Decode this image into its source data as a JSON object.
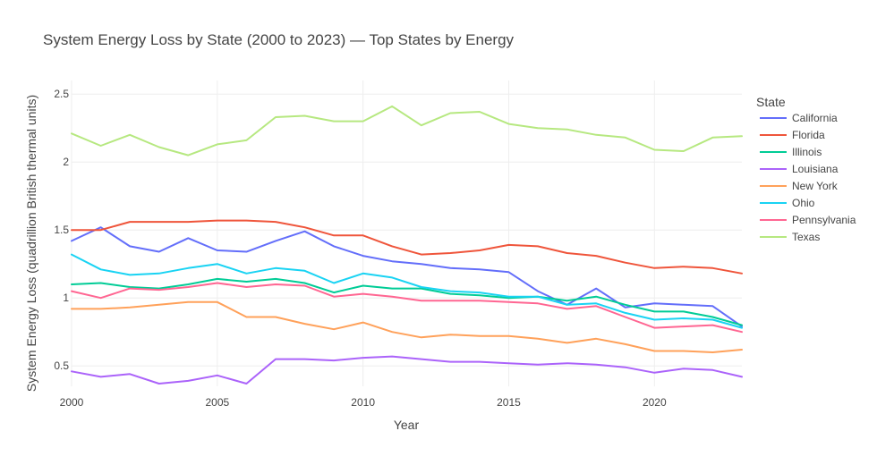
{
  "chart_data": {
    "type": "line",
    "title": "System Energy Loss by State (2000 to 2023) — Top States by Energy",
    "xlabel": "Year",
    "ylabel": "System Energy Loss (quadrillion British thermal units)",
    "legend_title": "State",
    "legend_position": "right",
    "grid": true,
    "xlim": [
      2000,
      2023
    ],
    "ylim": [
      0.35,
      2.6
    ],
    "x_ticks": [
      2000,
      2005,
      2010,
      2015,
      2020
    ],
    "y_ticks": [
      0.5,
      1,
      1.5,
      2,
      2.5
    ],
    "y_tick_labels": [
      "0.5",
      "1",
      "1.5",
      "2",
      "2.5"
    ],
    "x": [
      2000,
      2001,
      2002,
      2003,
      2004,
      2005,
      2006,
      2007,
      2008,
      2009,
      2010,
      2011,
      2012,
      2013,
      2014,
      2015,
      2016,
      2017,
      2018,
      2019,
      2020,
      2021,
      2022,
      2023
    ],
    "series": [
      {
        "name": "California",
        "color": "#636efa",
        "values": [
          1.42,
          1.52,
          1.38,
          1.34,
          1.44,
          1.35,
          1.34,
          1.42,
          1.49,
          1.38,
          1.31,
          1.27,
          1.25,
          1.22,
          1.21,
          1.19,
          1.05,
          0.95,
          1.07,
          0.93,
          0.96,
          0.95,
          0.94,
          0.79
        ]
      },
      {
        "name": "Florida",
        "color": "#ef553b",
        "values": [
          1.5,
          1.5,
          1.56,
          1.56,
          1.56,
          1.57,
          1.57,
          1.56,
          1.52,
          1.46,
          1.46,
          1.38,
          1.32,
          1.33,
          1.35,
          1.39,
          1.38,
          1.33,
          1.31,
          1.26,
          1.22,
          1.23,
          1.22,
          1.18
        ]
      },
      {
        "name": "Illinois",
        "color": "#00cc96",
        "values": [
          1.1,
          1.11,
          1.08,
          1.07,
          1.1,
          1.14,
          1.12,
          1.14,
          1.11,
          1.04,
          1.09,
          1.07,
          1.07,
          1.03,
          1.02,
          1.0,
          1.01,
          0.98,
          1.01,
          0.95,
          0.9,
          0.9,
          0.86,
          0.8
        ]
      },
      {
        "name": "Louisiana",
        "color": "#ab63fa",
        "values": [
          0.46,
          0.42,
          0.44,
          0.37,
          0.39,
          0.43,
          0.37,
          0.55,
          0.55,
          0.54,
          0.56,
          0.57,
          0.55,
          0.53,
          0.53,
          0.52,
          0.51,
          0.52,
          0.51,
          0.49,
          0.45,
          0.48,
          0.47,
          0.42
        ]
      },
      {
        "name": "New York",
        "color": "#ffa15a",
        "values": [
          0.92,
          0.92,
          0.93,
          0.95,
          0.97,
          0.97,
          0.86,
          0.86,
          0.81,
          0.77,
          0.82,
          0.75,
          0.71,
          0.73,
          0.72,
          0.72,
          0.7,
          0.67,
          0.7,
          0.66,
          0.61,
          0.61,
          0.6,
          0.62
        ]
      },
      {
        "name": "Ohio",
        "color": "#19d3f3",
        "values": [
          1.32,
          1.21,
          1.17,
          1.18,
          1.22,
          1.25,
          1.18,
          1.22,
          1.2,
          1.11,
          1.18,
          1.15,
          1.08,
          1.05,
          1.04,
          1.01,
          1.01,
          0.95,
          0.96,
          0.89,
          0.84,
          0.85,
          0.84,
          0.78
        ]
      },
      {
        "name": "Pennsylvania",
        "color": "#ff6692",
        "values": [
          1.05,
          1.0,
          1.07,
          1.06,
          1.08,
          1.11,
          1.08,
          1.1,
          1.09,
          1.01,
          1.03,
          1.01,
          0.98,
          0.98,
          0.98,
          0.97,
          0.96,
          0.92,
          0.94,
          0.86,
          0.78,
          0.79,
          0.8,
          0.75
        ]
      },
      {
        "name": "Texas",
        "color": "#b6e880",
        "values": [
          2.21,
          2.12,
          2.2,
          2.11,
          2.05,
          2.13,
          2.16,
          2.33,
          2.34,
          2.3,
          2.3,
          2.41,
          2.27,
          2.36,
          2.37,
          2.28,
          2.25,
          2.24,
          2.2,
          2.18,
          2.09,
          2.08,
          2.18,
          2.19
        ]
      }
    ]
  }
}
